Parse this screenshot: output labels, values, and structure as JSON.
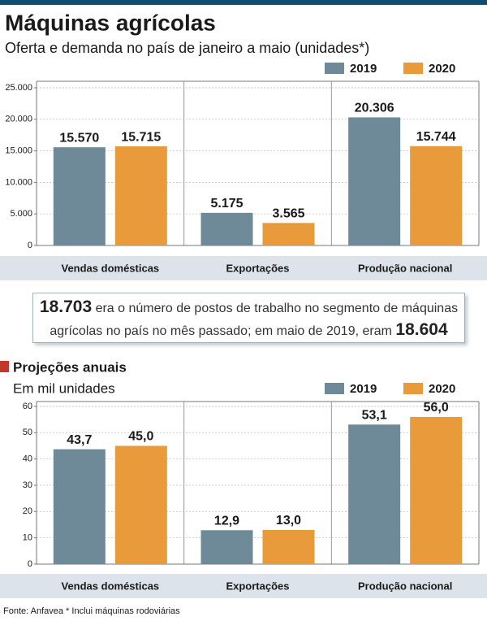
{
  "chart_data": [
    {
      "type": "bar",
      "title": "Máquinas agrícolas",
      "subtitle": "Oferta e demanda no país de janeiro a maio (unidades*)",
      "categories": [
        "Vendas domésticas",
        "Exportações",
        "Produção nacional"
      ],
      "series": [
        {
          "name": "2019",
          "color": "#6e8a99",
          "values": [
            15570,
            5175,
            20306
          ],
          "value_labels": [
            "15.570",
            "5.175",
            "20.306"
          ]
        },
        {
          "name": "2020",
          "color": "#e99a3a",
          "values": [
            15715,
            3565,
            15744
          ],
          "value_labels": [
            "15.715",
            "3.565",
            "15.744"
          ]
        }
      ],
      "ylim": [
        0,
        25000
      ],
      "yticks": [
        0,
        {
          "value": 5000,
          "label": "5.000"
        },
        {
          "value": 10000,
          "label": "10.000"
        },
        {
          "value": 15000,
          "label": "15.000"
        },
        {
          "value": 20000,
          "label": "20.000"
        },
        {
          "value": 25000,
          "label": "25.000"
        }
      ],
      "grid": true
    },
    {
      "type": "bar",
      "title": "Projeções anuais",
      "subtitle": "Em mil unidades",
      "categories": [
        "Vendas domésticas",
        "Exportações",
        "Produção nacional"
      ],
      "series": [
        {
          "name": "2019",
          "color": "#6e8a99",
          "values": [
            43.7,
            12.9,
            53.1
          ],
          "value_labels": [
            "43,7",
            "12,9",
            "53,1"
          ]
        },
        {
          "name": "2020",
          "color": "#e99a3a",
          "values": [
            45.0,
            13.0,
            56.0
          ],
          "value_labels": [
            "45,0",
            "13,0",
            "56,0"
          ]
        }
      ],
      "ylim": [
        0,
        60
      ],
      "yticks": [
        0,
        10,
        20,
        30,
        40,
        50,
        60
      ],
      "grid": true
    }
  ],
  "callout": {
    "number": "18.703",
    "text": "era o número de postos de trabalho no segmento de máquinas agrícolas no país no mês passado; em maio de 2019, eram",
    "number2": "18.604"
  },
  "source": "Fonte: Anfavea * Inclui máquinas rodoviárias"
}
